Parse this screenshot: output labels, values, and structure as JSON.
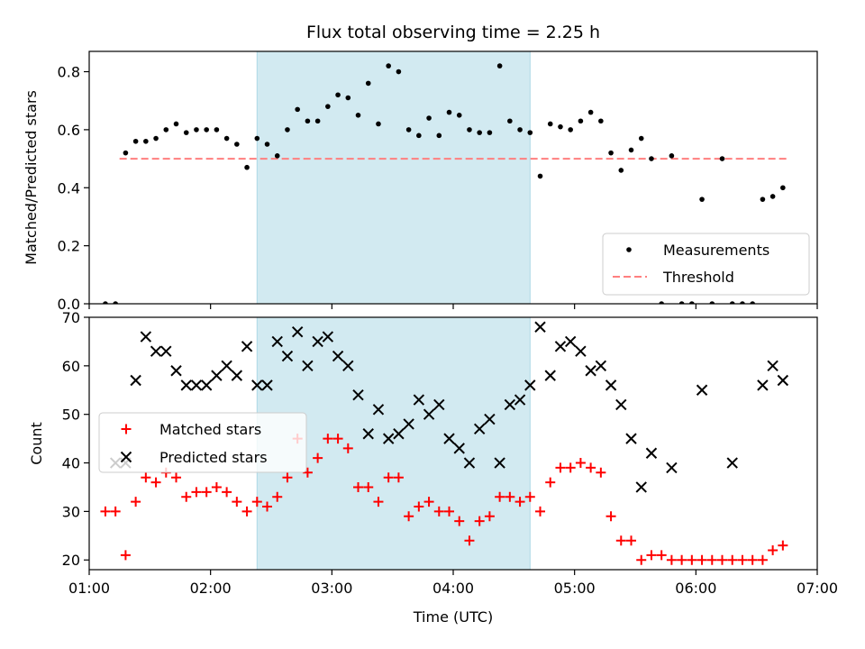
{
  "title": "Flux total observing time = 2.25 h",
  "colors": {
    "measurement": "#000000",
    "threshold": "#ff7f7f",
    "matched": "#ff0000",
    "predicted": "#000000",
    "shade": "#add8e6"
  },
  "chart_data": [
    {
      "type": "scatter",
      "ylabel": "Matched/Predicted stars",
      "xlabel": "",
      "xlim": [
        60,
        420
      ],
      "ylim": [
        0,
        0.87
      ],
      "yticks": [
        0.0,
        0.2,
        0.4,
        0.6,
        0.8
      ],
      "ytick_labels": [
        "0.0",
        "0.2",
        "0.4",
        "0.6",
        "0.8"
      ],
      "shaded_interval": [
        143,
        278
      ],
      "threshold": {
        "value": 0.5,
        "x": [
          75,
          405
        ]
      },
      "legend": {
        "position": "lower-right",
        "entries": [
          "Measurements",
          "Threshold"
        ]
      },
      "series": [
        {
          "name": "Measurements",
          "x": [
            68,
            73,
            78,
            83,
            88,
            93,
            98,
            103,
            108,
            113,
            118,
            123,
            128,
            133,
            138,
            143,
            148,
            153,
            158,
            163,
            168,
            173,
            178,
            183,
            188,
            193,
            198,
            203,
            208,
            213,
            218,
            223,
            228,
            233,
            238,
            243,
            248,
            253,
            258,
            263,
            268,
            273,
            278,
            283,
            288,
            293,
            298,
            303,
            308,
            313,
            318,
            323,
            328,
            333,
            338,
            343,
            348,
            353,
            358,
            363,
            368,
            373,
            378,
            383,
            388,
            393,
            398,
            403
          ],
          "y": [
            0.0,
            0.0,
            0.52,
            0.56,
            0.56,
            0.57,
            0.6,
            0.62,
            0.59,
            0.6,
            0.6,
            0.6,
            0.57,
            0.55,
            0.47,
            0.57,
            0.55,
            0.51,
            0.6,
            0.67,
            0.63,
            0.63,
            0.68,
            0.72,
            0.71,
            0.65,
            0.76,
            0.62,
            0.82,
            0.8,
            0.6,
            0.58,
            0.64,
            0.58,
            0.66,
            0.65,
            0.6,
            0.59,
            0.59,
            0.82,
            0.63,
            0.6,
            0.59,
            0.44,
            0.62,
            0.61,
            0.6,
            0.63,
            0.66,
            0.63,
            0.52,
            0.46,
            0.53,
            0.57,
            0.5,
            0.0,
            0.51,
            0.0,
            0.0,
            0.36,
            0.0,
            0.5,
            0.0,
            0.0,
            0.0,
            0.36,
            0.37,
            0.4
          ]
        }
      ]
    },
    {
      "type": "scatter",
      "ylabel": "Count",
      "xlabel": "Time (UTC)",
      "xlim": [
        60,
        420
      ],
      "ylim": [
        18,
        70
      ],
      "yticks": [
        20,
        30,
        40,
        50,
        60,
        70
      ],
      "ytick_labels": [
        "20",
        "30",
        "40",
        "50",
        "60",
        "70"
      ],
      "xticks": [
        60,
        120,
        180,
        240,
        300,
        360,
        420
      ],
      "xtick_labels": [
        "01:00",
        "02:00",
        "03:00",
        "04:00",
        "05:00",
        "06:00",
        "07:00"
      ],
      "shaded_interval": [
        143,
        278
      ],
      "legend": {
        "position": "center-left",
        "entries": [
          "Matched stars",
          "Predicted stars"
        ]
      },
      "series": [
        {
          "name": "Matched stars",
          "marker": "plus",
          "x": [
            68,
            73,
            78,
            83,
            88,
            93,
            98,
            103,
            108,
            113,
            118,
            123,
            128,
            133,
            138,
            143,
            148,
            153,
            158,
            163,
            168,
            173,
            178,
            183,
            188,
            193,
            198,
            203,
            208,
            213,
            218,
            223,
            228,
            233,
            238,
            243,
            248,
            253,
            258,
            263,
            268,
            273,
            278,
            283,
            288,
            293,
            298,
            303,
            308,
            313,
            318,
            323,
            328,
            333,
            338,
            343,
            348,
            353,
            358,
            363,
            368,
            373,
            378,
            383,
            388,
            393,
            398,
            403
          ],
          "y": [
            30,
            30,
            21,
            32,
            37,
            36,
            38,
            37,
            33,
            34,
            34,
            35,
            34,
            32,
            30,
            32,
            31,
            33,
            37,
            45,
            38,
            41,
            45,
            45,
            43,
            35,
            35,
            32,
            37,
            37,
            29,
            31,
            32,
            30,
            30,
            28,
            24,
            28,
            29,
            33,
            33,
            32,
            33,
            30,
            36,
            39,
            39,
            40,
            39,
            38,
            29,
            24,
            24,
            20,
            21,
            21,
            20,
            20,
            20,
            20,
            20,
            20,
            20,
            20,
            20,
            20,
            22,
            23
          ]
        },
        {
          "name": "Predicted stars",
          "marker": "x",
          "x": [
            73,
            78,
            83,
            88,
            93,
            98,
            103,
            108,
            113,
            118,
            123,
            128,
            133,
            138,
            143,
            148,
            153,
            158,
            163,
            168,
            173,
            178,
            183,
            188,
            193,
            198,
            203,
            208,
            213,
            218,
            223,
            228,
            233,
            238,
            243,
            248,
            253,
            258,
            263,
            268,
            273,
            278,
            283,
            288,
            293,
            298,
            303,
            308,
            313,
            318,
            323,
            328,
            333,
            338,
            348,
            363,
            378,
            393,
            398,
            403
          ],
          "y": [
            40,
            40,
            57,
            66,
            63,
            63,
            59,
            56,
            56,
            56,
            58,
            60,
            58,
            64,
            56,
            56,
            65,
            62,
            67,
            60,
            65,
            66,
            62,
            60,
            54,
            46,
            51,
            45,
            46,
            48,
            53,
            50,
            52,
            45,
            43,
            40,
            47,
            49,
            40,
            52,
            53,
            56,
            68,
            58,
            64,
            65,
            63,
            59,
            60,
            56,
            52,
            45,
            35,
            42,
            39,
            55,
            40,
            56,
            60,
            57
          ]
        }
      ]
    }
  ]
}
